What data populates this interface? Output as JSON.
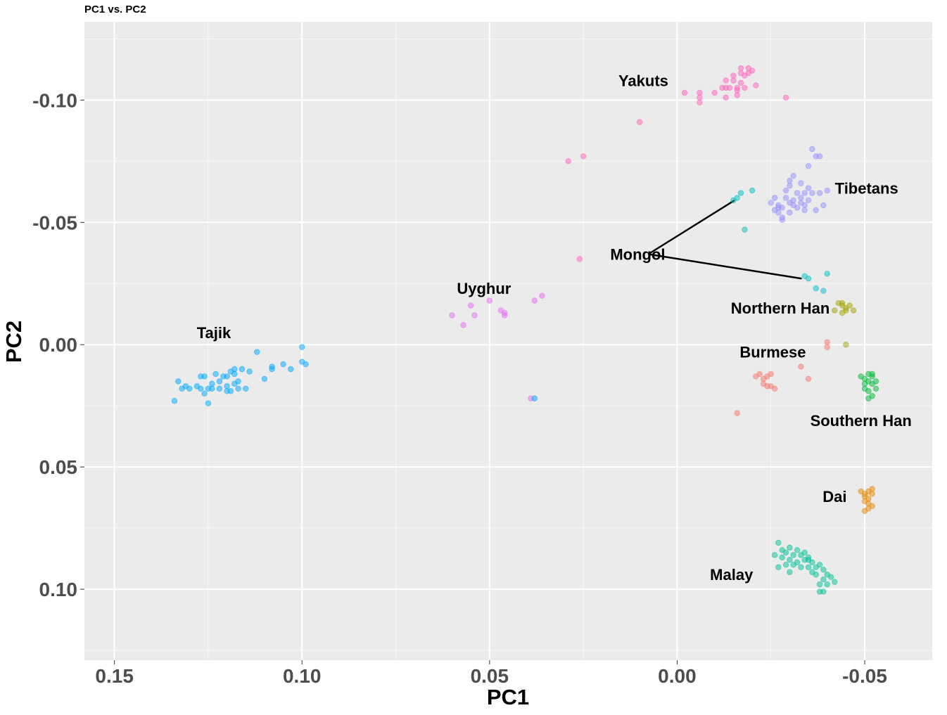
{
  "chart_data": {
    "type": "scatter",
    "title": "PC1 vs. PC2",
    "xlabel": "PC1",
    "ylabel": "PC2",
    "x_reversed": true,
    "y_reversed": true,
    "xlim": [
      0.158,
      -0.068
    ],
    "ylim": [
      -0.132,
      0.129
    ],
    "x_ticks": [
      0.15,
      0.1,
      0.05,
      0.0,
      -0.05
    ],
    "x_tick_labels": [
      "0.15",
      "0.10",
      "0.05",
      "0.00",
      "-0.05"
    ],
    "y_ticks": [
      -0.1,
      -0.05,
      0.0,
      0.05,
      0.1
    ],
    "y_tick_labels": [
      "-0.10",
      "-0.05",
      "0.00",
      "0.05",
      "0.10"
    ],
    "grid": true,
    "background": "#ebebeb",
    "series": [
      {
        "name": "Tajik",
        "color": "#00A9FF",
        "label": "Tajik",
        "x": [
          0.127,
          0.112,
          0.1,
          0.1,
          0.099,
          0.103,
          0.105,
          0.108,
          0.108,
          0.11,
          0.114,
          0.116,
          0.117,
          0.117,
          0.118,
          0.118,
          0.119,
          0.12,
          0.12,
          0.12,
          0.121,
          0.122,
          0.122,
          0.123,
          0.124,
          0.125,
          0.125,
          0.126,
          0.126,
          0.127,
          0.128,
          0.13,
          0.131,
          0.132,
          0.133,
          0.134,
          0.124,
          0.119,
          0.115,
          0.118
        ],
        "y": [
          0.013,
          0.003,
          0.001,
          0.007,
          0.008,
          0.01,
          0.008,
          0.009,
          0.01,
          0.014,
          0.011,
          0.01,
          0.015,
          0.018,
          0.012,
          0.016,
          0.011,
          0.013,
          0.017,
          0.019,
          0.013,
          0.015,
          0.018,
          0.012,
          0.016,
          0.018,
          0.024,
          0.013,
          0.02,
          0.018,
          0.017,
          0.018,
          0.017,
          0.018,
          0.015,
          0.023,
          0.018,
          0.019,
          0.018,
          0.01
        ]
      },
      {
        "name": "Uyghur",
        "color": "#E76BF3",
        "label": "Uyghur",
        "x": [
          0.06,
          0.057,
          0.055,
          0.054,
          0.05,
          0.047,
          0.046,
          0.046,
          0.038,
          0.036,
          0.039
        ],
        "y": [
          -0.012,
          -0.008,
          -0.016,
          -0.012,
          -0.018,
          -0.014,
          -0.013,
          -0.012,
          -0.018,
          -0.02,
          0.022
        ]
      },
      {
        "name": "Yakuts",
        "color": "#FF62BC",
        "label": "Yakuts",
        "x": [
          0.01,
          -0.002,
          -0.006,
          -0.006,
          -0.006,
          -0.01,
          -0.012,
          -0.013,
          -0.013,
          -0.014,
          -0.015,
          -0.015,
          -0.016,
          -0.016,
          -0.017,
          -0.017,
          -0.017,
          -0.018,
          -0.018,
          -0.019,
          -0.019,
          -0.02,
          -0.021,
          -0.029,
          -0.016,
          -0.013
        ],
        "y": [
          -0.091,
          -0.103,
          -0.103,
          -0.101,
          -0.099,
          -0.103,
          -0.105,
          -0.105,
          -0.101,
          -0.105,
          -0.108,
          -0.11,
          -0.102,
          -0.105,
          -0.107,
          -0.111,
          -0.113,
          -0.105,
          -0.11,
          -0.111,
          -0.113,
          -0.112,
          -0.106,
          -0.101,
          -0.104,
          -0.108
        ]
      },
      {
        "name": "Tibetans",
        "color": "#9590FF",
        "label": "Tibetans",
        "x": [
          -0.025,
          -0.026,
          -0.026,
          -0.027,
          -0.027,
          -0.028,
          -0.028,
          -0.029,
          -0.029,
          -0.03,
          -0.03,
          -0.03,
          -0.031,
          -0.031,
          -0.032,
          -0.032,
          -0.033,
          -0.033,
          -0.034,
          -0.034,
          -0.035,
          -0.035,
          -0.036,
          -0.037,
          -0.037,
          -0.038,
          -0.038,
          -0.039,
          -0.04,
          -0.035,
          -0.03,
          -0.028,
          -0.033,
          -0.036,
          -0.031,
          -0.027,
          -0.034
        ],
        "y": [
          -0.058,
          -0.055,
          -0.06,
          -0.054,
          -0.057,
          -0.051,
          -0.056,
          -0.06,
          -0.063,
          -0.054,
          -0.058,
          -0.065,
          -0.057,
          -0.069,
          -0.056,
          -0.062,
          -0.058,
          -0.066,
          -0.055,
          -0.062,
          -0.059,
          -0.064,
          -0.08,
          -0.077,
          -0.055,
          -0.062,
          -0.077,
          -0.057,
          -0.063,
          -0.073,
          -0.067,
          -0.052,
          -0.06,
          -0.062,
          -0.059,
          -0.056,
          -0.057
        ]
      },
      {
        "name": "Mongol",
        "color": "#00BFC4",
        "label": "Mongol",
        "x": [
          -0.015,
          -0.016,
          -0.017,
          -0.018,
          -0.02,
          -0.034,
          -0.035,
          -0.037,
          -0.039,
          -0.04
        ],
        "y": [
          -0.059,
          -0.06,
          -0.062,
          -0.047,
          -0.063,
          -0.028,
          -0.027,
          -0.023,
          -0.022,
          -0.029
        ]
      },
      {
        "name": "Northern Han",
        "color": "#A3A500",
        "label": "Northern Han",
        "x": [
          -0.042,
          -0.043,
          -0.044,
          -0.044,
          -0.045,
          -0.046,
          -0.047,
          -0.045,
          -0.044,
          -0.045
        ],
        "y": [
          -0.014,
          -0.017,
          -0.013,
          -0.016,
          -0.015,
          -0.016,
          -0.014,
          0.0,
          -0.017,
          -0.014
        ]
      },
      {
        "name": "Burmese",
        "color": "#F8766D",
        "label": "Burmese",
        "x": [
          -0.016,
          -0.021,
          -0.022,
          -0.023,
          -0.023,
          -0.024,
          -0.024,
          -0.025,
          -0.025,
          -0.026,
          -0.033,
          -0.035,
          -0.04,
          -0.04
        ],
        "y": [
          0.028,
          0.013,
          0.012,
          0.014,
          0.016,
          0.013,
          0.017,
          0.012,
          0.017,
          0.018,
          0.009,
          0.014,
          -0.001,
          0.001
        ]
      },
      {
        "name": "Southern Han",
        "color": "#00BA38",
        "label": "Southern Han",
        "x": [
          -0.049,
          -0.05,
          -0.05,
          -0.051,
          -0.051,
          -0.051,
          -0.052,
          -0.052,
          -0.052,
          -0.053,
          -0.053,
          -0.05,
          -0.051,
          -0.052
        ],
        "y": [
          0.013,
          0.016,
          0.018,
          0.012,
          0.015,
          0.019,
          0.013,
          0.016,
          0.021,
          0.015,
          0.018,
          0.014,
          0.022,
          0.012
        ]
      },
      {
        "name": "Dai",
        "color": "#E58700",
        "label": "Dai",
        "x": [
          -0.049,
          -0.05,
          -0.05,
          -0.05,
          -0.051,
          -0.051,
          -0.051,
          -0.052,
          -0.052,
          -0.052,
          -0.05,
          -0.051
        ],
        "y": [
          0.06,
          0.061,
          0.062,
          0.064,
          0.06,
          0.063,
          0.065,
          0.059,
          0.061,
          0.066,
          0.068,
          0.067
        ]
      },
      {
        "name": "Malay",
        "color": "#00C19A",
        "label": "Malay",
        "x": [
          -0.027,
          -0.026,
          -0.028,
          -0.028,
          -0.029,
          -0.029,
          -0.03,
          -0.03,
          -0.031,
          -0.031,
          -0.032,
          -0.032,
          -0.033,
          -0.033,
          -0.034,
          -0.034,
          -0.035,
          -0.035,
          -0.036,
          -0.036,
          -0.037,
          -0.037,
          -0.038,
          -0.038,
          -0.039,
          -0.039,
          -0.04,
          -0.04,
          -0.041,
          -0.042,
          -0.039,
          -0.038,
          -0.035,
          -0.03,
          -0.027
        ],
        "y": [
          0.081,
          0.086,
          0.084,
          0.087,
          0.09,
          0.085,
          0.088,
          0.083,
          0.086,
          0.09,
          0.084,
          0.089,
          0.086,
          0.091,
          0.085,
          0.088,
          0.087,
          0.091,
          0.089,
          0.093,
          0.091,
          0.094,
          0.09,
          0.098,
          0.092,
          0.096,
          0.094,
          0.098,
          0.095,
          0.097,
          0.101,
          0.101,
          0.088,
          0.093,
          0.091
        ]
      }
    ],
    "outliers": {
      "Yakuts": {
        "x": [
          0.029,
          0.025,
          0.026
        ],
        "y": [
          -0.075,
          -0.077,
          -0.035
        ]
      },
      "Tajik": {
        "x": [
          0.038
        ],
        "y": [
          0.022
        ]
      }
    },
    "annotations": [
      {
        "text": "Tajik",
        "x": 0.1235,
        "y": -0.005
      },
      {
        "text": "Uyghur",
        "x": 0.0515,
        "y": -0.023
      },
      {
        "text": "Yakuts",
        "x": 0.009,
        "y": -0.108
      },
      {
        "text": "Tibetans",
        "x": -0.0505,
        "y": -0.064
      },
      {
        "text": "Mongol",
        "x": 0.0105,
        "y": -0.037
      },
      {
        "text": "Northern Han",
        "x": -0.0275,
        "y": -0.015
      },
      {
        "text": "Burmese",
        "x": -0.0255,
        "y": 0.003
      },
      {
        "text": "Southern Han",
        "x": -0.049,
        "y": 0.031
      },
      {
        "text": "Dai",
        "x": -0.042,
        "y": 0.062
      },
      {
        "text": "Malay",
        "x": -0.0145,
        "y": 0.094
      }
    ],
    "connector_lines": [
      {
        "label": "Mongol",
        "from_x": 0.0077,
        "from_y": -0.037,
        "to_x": -0.0153,
        "to_y": -0.059
      },
      {
        "label": "Mongol",
        "from_x": 0.0077,
        "from_y": -0.037,
        "to_x": -0.0332,
        "to_y": -0.027
      }
    ]
  }
}
